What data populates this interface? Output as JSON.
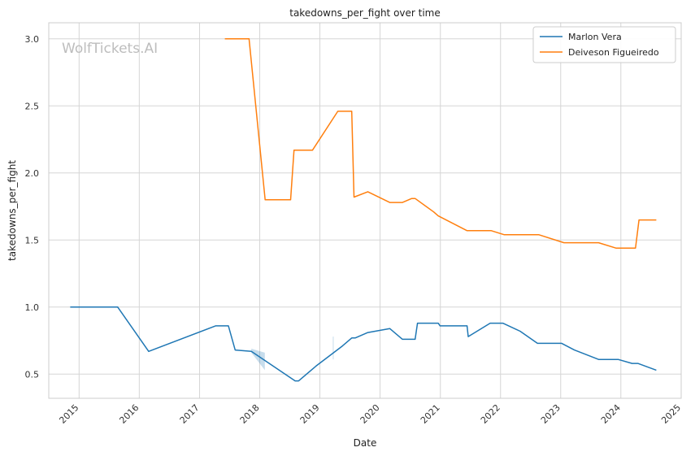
{
  "chart_data": {
    "type": "line",
    "title": "takedowns_per_fight over time",
    "xlabel": "Date",
    "ylabel": "takedowns_per_fight",
    "watermark": "WolfTickets.AI",
    "x_tick_labels": [
      "2015",
      "2016",
      "2017",
      "2018",
      "2019",
      "2020",
      "2021",
      "2022",
      "2023",
      "2024",
      "2025"
    ],
    "y_tick_labels": [
      "0.5",
      "1.0",
      "1.5",
      "2.0",
      "2.5",
      "3.0"
    ],
    "y_ticks": [
      0.5,
      1.0,
      1.5,
      2.0,
      2.5,
      3.0
    ],
    "xlim": [
      "2014-07-01",
      "2025-01-01"
    ],
    "ylim": [
      0.32,
      3.12
    ],
    "grid": true,
    "legend_position": "top-right",
    "series": [
      {
        "name": "Marlon Vera",
        "color": "#1f77b4",
        "points": [
          [
            "2014-11-08",
            1.0
          ],
          [
            "2015-08-23",
            1.0
          ],
          [
            "2016-02-27",
            0.67
          ],
          [
            "2017-04-08",
            0.86
          ],
          [
            "2017-06-25",
            0.86
          ],
          [
            "2017-08-05",
            0.68
          ],
          [
            "2017-11-11",
            0.67
          ],
          [
            "2018-08-04",
            0.45
          ],
          [
            "2018-08-25",
            0.45
          ],
          [
            "2018-12-08",
            0.56
          ],
          [
            "2019-05-18",
            0.71
          ],
          [
            "2019-07-13",
            0.77
          ],
          [
            "2019-08-03",
            0.77
          ],
          [
            "2019-10-19",
            0.81
          ],
          [
            "2020-02-29",
            0.84
          ],
          [
            "2020-05-16",
            0.76
          ],
          [
            "2020-08-01",
            0.76
          ],
          [
            "2020-08-15",
            0.88
          ],
          [
            "2020-12-19",
            0.88
          ],
          [
            "2020-12-30",
            0.86
          ],
          [
            "2021-06-12",
            0.86
          ],
          [
            "2021-06-19",
            0.78
          ],
          [
            "2021-10-30",
            0.88
          ],
          [
            "2022-01-15",
            0.88
          ],
          [
            "2022-04-30",
            0.82
          ],
          [
            "2022-08-13",
            0.73
          ],
          [
            "2022-12-10",
            0.73
          ],
          [
            "2023-01-07",
            0.73
          ],
          [
            "2023-03-25",
            0.68
          ],
          [
            "2023-08-19",
            0.61
          ],
          [
            "2023-12-16",
            0.61
          ],
          [
            "2024-03-09",
            0.58
          ],
          [
            "2024-04-13",
            0.58
          ],
          [
            "2024-08-03",
            0.53
          ]
        ],
        "band": [
          [
            "2017-11-11",
            0.69,
            0.66
          ],
          [
            "2018-02-01",
            0.66,
            0.53
          ]
        ],
        "spike": [
          "2019-03-23",
          0.61,
          0.78
        ]
      },
      {
        "name": "Deiveson Figueiredo",
        "color": "#ff7f0e",
        "points": [
          [
            "2017-06-03",
            3.0
          ],
          [
            "2017-10-28",
            3.0
          ],
          [
            "2018-02-03",
            1.8
          ],
          [
            "2018-07-07",
            1.8
          ],
          [
            "2018-07-28",
            2.17
          ],
          [
            "2018-11-17",
            2.17
          ],
          [
            "2019-04-20",
            2.46
          ],
          [
            "2019-07-13",
            2.46
          ],
          [
            "2019-07-27",
            1.82
          ],
          [
            "2019-10-19",
            1.86
          ],
          [
            "2020-02-29",
            1.78
          ],
          [
            "2020-05-16",
            1.78
          ],
          [
            "2020-07-11",
            1.81
          ],
          [
            "2020-08-01",
            1.81
          ],
          [
            "2020-11-21",
            1.71
          ],
          [
            "2020-12-19",
            1.68
          ],
          [
            "2021-06-12",
            1.57
          ],
          [
            "2021-11-06",
            1.57
          ],
          [
            "2022-01-22",
            1.54
          ],
          [
            "2022-08-20",
            1.54
          ],
          [
            "2023-01-21",
            1.48
          ],
          [
            "2023-08-19",
            1.48
          ],
          [
            "2023-12-02",
            1.44
          ],
          [
            "2024-03-30",
            1.44
          ],
          [
            "2024-04-20",
            1.65
          ],
          [
            "2024-08-03",
            1.65
          ]
        ]
      }
    ]
  }
}
